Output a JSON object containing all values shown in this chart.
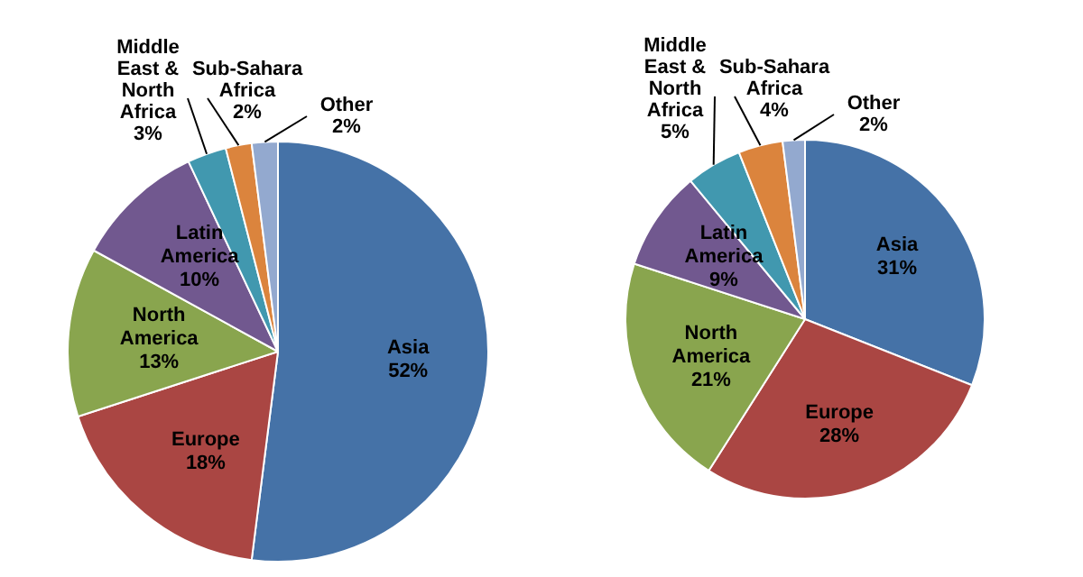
{
  "chart_data": [
    {
      "type": "pie",
      "categories": [
        "Asia",
        "Europe",
        "North America",
        "Latin America",
        "Middle East & North Africa",
        "Sub-Sahara Africa",
        "Other"
      ],
      "values": [
        52,
        18,
        13,
        10,
        3,
        2,
        2
      ],
      "value_labels": [
        "52%",
        "18%",
        "13%",
        "10%",
        "3%",
        "2%",
        "2%"
      ],
      "colors": [
        "#4572a7",
        "#aa4643",
        "#89a54e",
        "#71588f",
        "#4198af",
        "#db843d",
        "#93a9cf"
      ],
      "legend": false
    },
    {
      "type": "pie",
      "categories": [
        "Asia",
        "Europe",
        "North America",
        "Latin America",
        "Middle East & North Africa",
        "Sub-Sahara Africa",
        "Other"
      ],
      "values": [
        31,
        28,
        21,
        9,
        5,
        4,
        2
      ],
      "value_labels": [
        "31%",
        "28%",
        "21%",
        "9%",
        "5%",
        "4%",
        "2%"
      ],
      "colors": [
        "#4572a7",
        "#aa4643",
        "#89a54e",
        "#71588f",
        "#4198af",
        "#db843d",
        "#93a9cf"
      ],
      "legend": false
    }
  ]
}
